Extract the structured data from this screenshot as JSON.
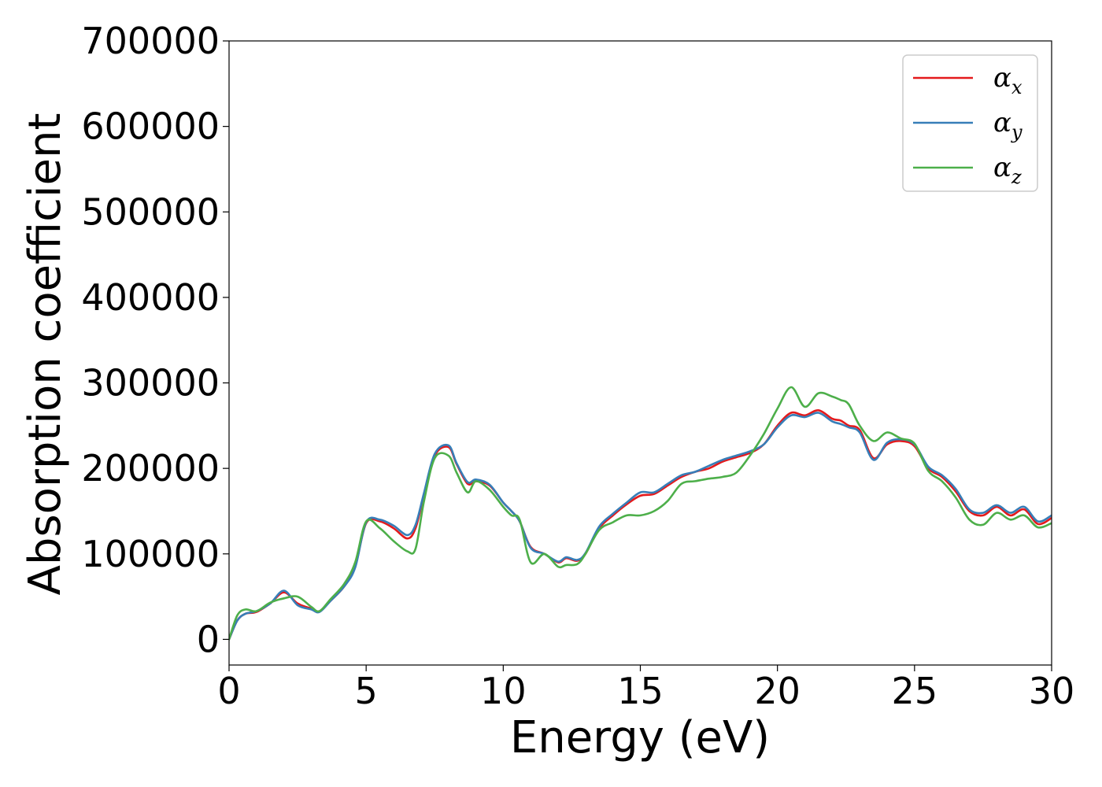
{
  "chart_data": {
    "type": "line",
    "xlabel": "Energy (eV)",
    "ylabel": "Absorption coefficient",
    "xlim": [
      0,
      30
    ],
    "ylim": [
      -30000,
      700000
    ],
    "xticks": [
      0,
      5,
      10,
      15,
      20,
      25,
      30
    ],
    "xtick_labels": [
      "0",
      "5",
      "10",
      "15",
      "20",
      "25",
      "30"
    ],
    "yticks": [
      0,
      100000,
      200000,
      300000,
      400000,
      500000,
      600000,
      700000
    ],
    "ytick_labels": [
      "0",
      "100000",
      "200000",
      "300000",
      "400000",
      "500000",
      "600000",
      "700000"
    ],
    "grid": false,
    "legend_position": "top-right",
    "series": [
      {
        "name": "α_x",
        "name_main": "α",
        "name_sub": "x",
        "color": "#e41a1c",
        "x": [
          0,
          0.3,
          0.6,
          1,
          1.5,
          2,
          2.5,
          3,
          3.3,
          3.7,
          4.2,
          4.6,
          5,
          5.5,
          6,
          6.5,
          6.8,
          7.1,
          7.5,
          8,
          8.3,
          8.7,
          9,
          9.5,
          10,
          10.3,
          10.6,
          11,
          11.5,
          12,
          12.3,
          12.7,
          13,
          13.5,
          14,
          14.5,
          15,
          15.5,
          16,
          16.5,
          17,
          17.5,
          18,
          18.5,
          19,
          19.5,
          20,
          20.5,
          21,
          21.5,
          22,
          22.3,
          22.6,
          23,
          23.5,
          24,
          24.5,
          25,
          25.5,
          26,
          26.5,
          27,
          27.5,
          28,
          28.5,
          29,
          29.5,
          30
        ],
        "y": [
          0,
          22000,
          30000,
          32000,
          42000,
          55000,
          42000,
          36000,
          33000,
          45000,
          62000,
          85000,
          136000,
          138000,
          130000,
          118000,
          130000,
          168000,
          215000,
          225000,
          205000,
          182000,
          185000,
          180000,
          160000,
          150000,
          138000,
          108000,
          100000,
          90000,
          95000,
          92000,
          100000,
          130000,
          145000,
          158000,
          168000,
          170000,
          180000,
          190000,
          196000,
          200000,
          208000,
          213000,
          218000,
          228000,
          250000,
          265000,
          262000,
          268000,
          258000,
          256000,
          250000,
          245000,
          212000,
          228000,
          232000,
          226000,
          200000,
          190000,
          173000,
          150000,
          145000,
          155000,
          145000,
          152000,
          135000,
          142000
        ]
      },
      {
        "name": "α_y",
        "name_main": "α",
        "name_sub": "y",
        "color": "#377eb8",
        "x": [
          0,
          0.3,
          0.6,
          1,
          1.5,
          2,
          2.5,
          3,
          3.3,
          3.7,
          4.2,
          4.6,
          5,
          5.5,
          6,
          6.5,
          6.8,
          7.1,
          7.5,
          8,
          8.3,
          8.7,
          9,
          9.5,
          10,
          10.3,
          10.6,
          11,
          11.5,
          12,
          12.3,
          12.7,
          13,
          13.5,
          14,
          14.5,
          15,
          15.5,
          16,
          16.5,
          17,
          17.5,
          18,
          18.5,
          19,
          19.5,
          20,
          20.5,
          21,
          21.5,
          22,
          22.3,
          22.6,
          23,
          23.5,
          24,
          24.5,
          25,
          25.5,
          26,
          26.5,
          27,
          27.5,
          28,
          28.5,
          29,
          29.5,
          30
        ],
        "y": [
          0,
          22000,
          30000,
          33000,
          42000,
          57000,
          40000,
          35000,
          32000,
          45000,
          62000,
          84000,
          137000,
          140000,
          133000,
          122000,
          134000,
          170000,
          217000,
          227000,
          206000,
          184000,
          187000,
          181000,
          160000,
          150000,
          138000,
          107000,
          100000,
          91000,
          96000,
          93000,
          101000,
          132000,
          147000,
          160000,
          172000,
          172000,
          182000,
          192000,
          196000,
          203000,
          210000,
          215000,
          220000,
          228000,
          248000,
          262000,
          260000,
          265000,
          255000,
          252000,
          248000,
          242000,
          210000,
          230000,
          234000,
          228000,
          202000,
          192000,
          176000,
          152000,
          148000,
          157000,
          148000,
          155000,
          138000,
          145000
        ]
      },
      {
        "name": "α_z",
        "name_main": "α",
        "name_sub": "z",
        "color": "#4daf4a",
        "x": [
          0,
          0.3,
          0.6,
          1,
          1.5,
          2,
          2.5,
          3,
          3.3,
          3.7,
          4.2,
          4.6,
          5,
          5.5,
          6,
          6.5,
          6.8,
          7.1,
          7.5,
          8,
          8.3,
          8.7,
          9,
          9.5,
          10,
          10.3,
          10.6,
          11,
          11.5,
          12,
          12.3,
          12.7,
          13,
          13.5,
          14,
          14.5,
          15,
          15.5,
          16,
          16.5,
          17,
          17.5,
          18,
          18.5,
          19,
          19.5,
          20,
          20.5,
          21,
          21.5,
          22,
          22.3,
          22.6,
          23,
          23.5,
          24,
          24.5,
          25,
          25.5,
          26,
          26.5,
          27,
          27.5,
          28,
          28.5,
          29,
          29.5,
          30
        ],
        "y": [
          0,
          28000,
          35000,
          33000,
          43000,
          48000,
          50000,
          38000,
          33000,
          47000,
          65000,
          90000,
          138000,
          130000,
          115000,
          103000,
          106000,
          160000,
          212000,
          215000,
          195000,
          172000,
          185000,
          175000,
          155000,
          145000,
          140000,
          90000,
          100000,
          85000,
          87000,
          88000,
          100000,
          128000,
          137000,
          145000,
          145000,
          150000,
          162000,
          182000,
          185000,
          188000,
          190000,
          195000,
          215000,
          240000,
          270000,
          295000,
          272000,
          288000,
          284000,
          280000,
          275000,
          250000,
          232000,
          242000,
          235000,
          229000,
          197000,
          185000,
          166000,
          140000,
          134000,
          148000,
          140000,
          145000,
          131000,
          136000
        ]
      }
    ]
  }
}
